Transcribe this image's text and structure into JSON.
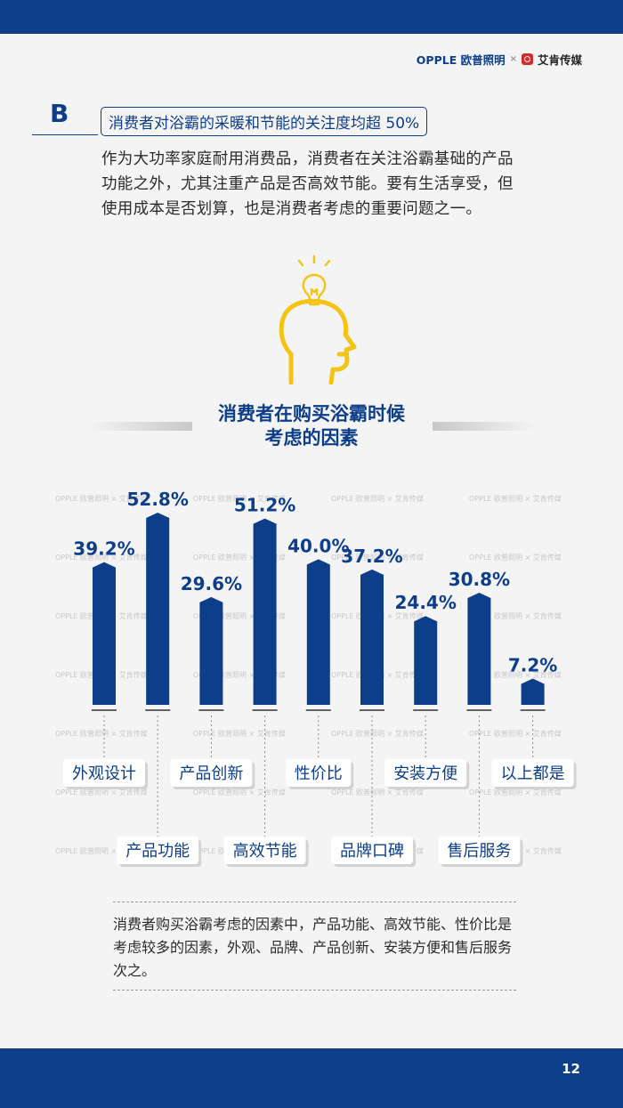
{
  "header": {
    "brand_opple": "OPPLE 欧普照明",
    "brand_sep": "×",
    "brand_ai": "艾肯传媒"
  },
  "section": {
    "letter": "B",
    "title": "消费者对浴霸的采暖和节能的关注度均超 50%",
    "intro": "作为大功率家庭耐用消费品，消费者在关注浴霸基础的产品功能之外，尤其注重产品是否高效节能。要有生活享受，但使用成本是否划算，也是消费者考虑的重要问题之一。"
  },
  "watermark": "OPPLE 欧普照明 × 艾肯传媒",
  "chart_data": {
    "type": "bar",
    "title_line1": "消费者在购买浴霸时候",
    "title_line2": "考虑的因素",
    "categories": [
      "外观设计",
      "产品功能",
      "产品创新",
      "高效节能",
      "性价比",
      "品牌口碑",
      "安装方便",
      "售后服务",
      "以上都是"
    ],
    "values": [
      39.2,
      52.8,
      29.6,
      51.2,
      40.0,
      37.2,
      24.4,
      30.8,
      7.2
    ],
    "value_labels": [
      "39.2%",
      "52.8%",
      "29.6%",
      "51.2%",
      "40.0%",
      "37.2%",
      "24.4%",
      "30.8%",
      "7.2%"
    ],
    "ylim": [
      0,
      55
    ],
    "bar_color": "#0d3e8a",
    "label_color": "#0d3e8a"
  },
  "summary": "消费者购买浴霸考虑的因素中，产品功能、高效节能、性价比是考虑较多的因素，外观、品牌、产品创新、安装方便和售后服务次之。",
  "footer": {
    "page_number": "12"
  }
}
